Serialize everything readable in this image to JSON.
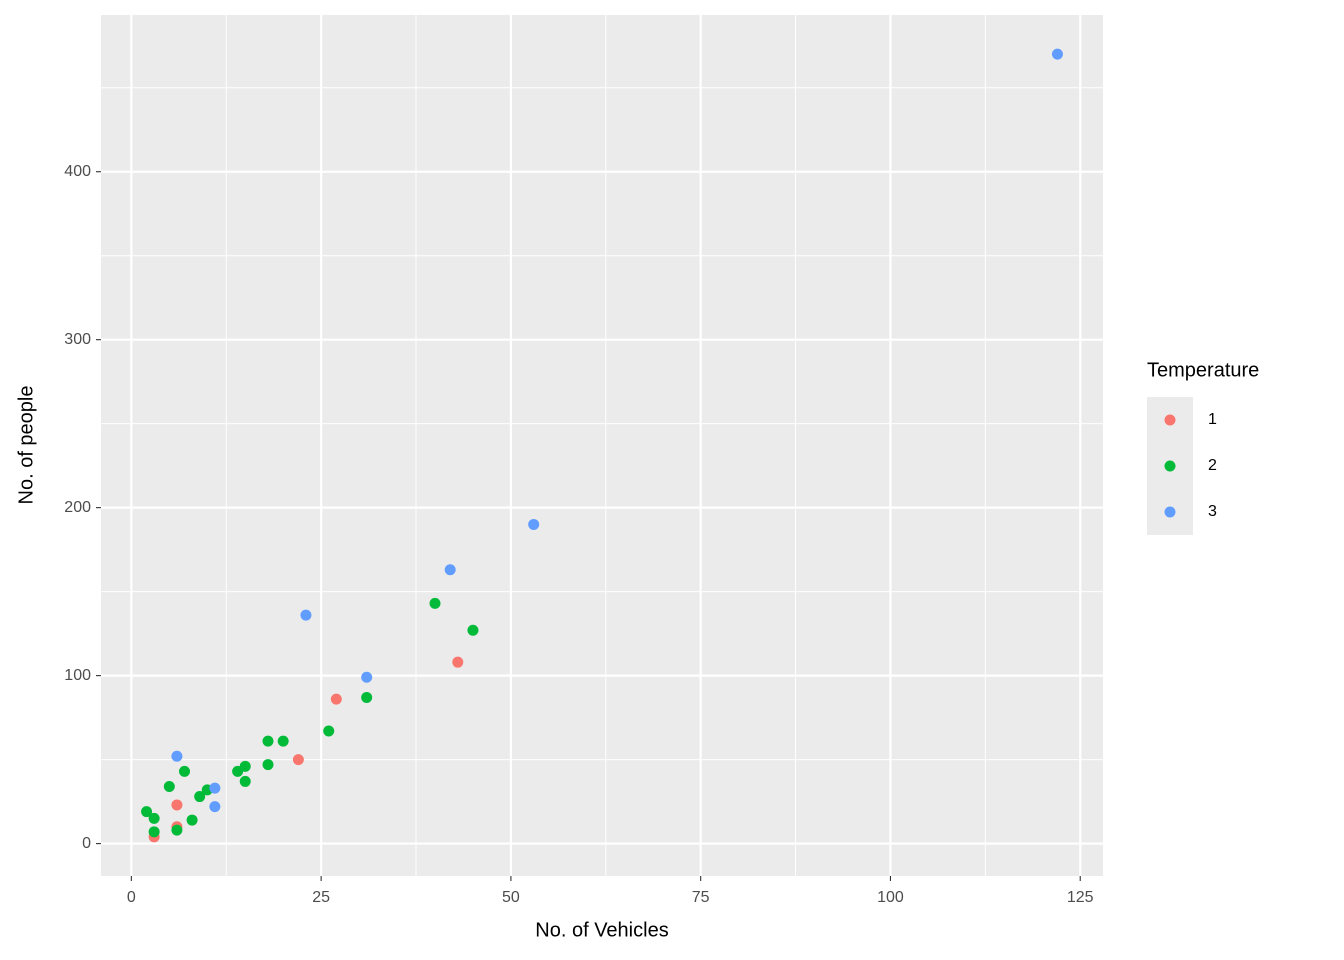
{
  "chart_data": {
    "type": "scatter",
    "x_label": "No. of Vehicles",
    "y_label": "No. of people",
    "legend_title": "Temperature",
    "legend_position": "right",
    "grid": true,
    "xlim": [
      -4,
      128
    ],
    "ylim": [
      -19.3,
      493.3
    ],
    "xticks": [
      0,
      25,
      50,
      75,
      100,
      125
    ],
    "yticks": [
      0,
      100,
      200,
      300,
      400
    ],
    "series": [
      {
        "name": "1",
        "color": "#F8766D",
        "x": [
          3,
          6,
          6,
          22,
          27,
          43
        ],
        "values": [
          4,
          10,
          23,
          50,
          86,
          108
        ]
      },
      {
        "name": "2",
        "color": "#00BA38",
        "x": [
          2,
          3,
          3,
          6,
          5,
          7,
          8,
          9,
          10,
          14,
          15,
          15,
          18,
          18,
          20,
          26,
          31,
          40,
          45
        ],
        "values": [
          19,
          15,
          7,
          8,
          34,
          43,
          14,
          28,
          32,
          43,
          46,
          37,
          61,
          47,
          61,
          67,
          87,
          143,
          127
        ]
      },
      {
        "name": "3",
        "color": "#619CFF",
        "x": [
          6,
          11,
          11,
          23,
          31,
          42,
          53,
          122
        ],
        "values": [
          52,
          33,
          22,
          136,
          99,
          163,
          190,
          470
        ]
      }
    ]
  }
}
